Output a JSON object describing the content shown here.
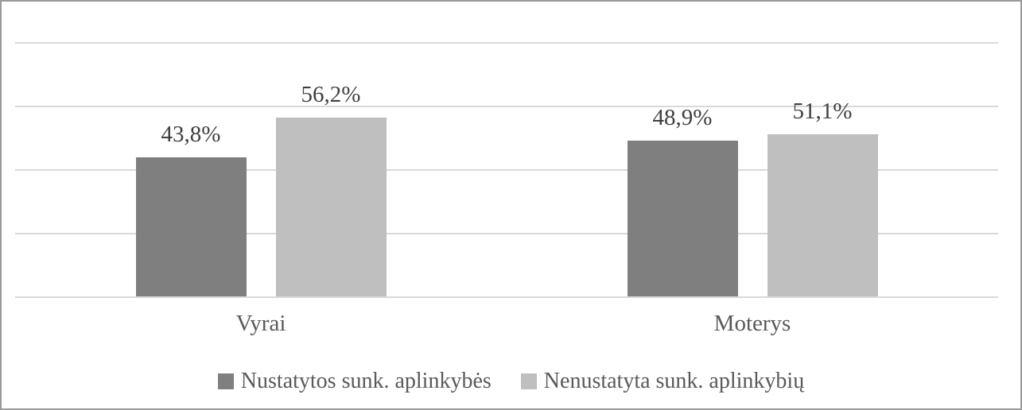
{
  "chart_data": {
    "type": "bar",
    "title": "",
    "xlabel": "",
    "ylabel": "",
    "categories": [
      "Vyrai",
      "Moterys"
    ],
    "series": [
      {
        "name": "Nustatytos sunk. aplinkybės",
        "values": [
          43.8,
          48.9
        ],
        "labels": [
          "43,8%",
          "48,9%"
        ],
        "color": "#7f7f7f"
      },
      {
        "name": "Nenustatyta sunk. aplinkybių",
        "values": [
          56.2,
          51.1
        ],
        "labels": [
          "56,2%",
          "51,1%"
        ],
        "color": "#bfbfbf"
      }
    ],
    "ylim": [
      0,
      80
    ],
    "gridline_interval": 20,
    "grid": true,
    "axis_labels_visible": false,
    "legend_position": "bottom",
    "data_label_format": "percent-comma-decimal"
  },
  "colors": {
    "series_dark": "#7f7f7f",
    "series_light": "#bfbfbf",
    "gridline": "#d9d9d9",
    "border": "#9a9a9a",
    "data_label_text": "#3f3f3f",
    "axis_text": "#595959",
    "background": "#ffffff"
  }
}
